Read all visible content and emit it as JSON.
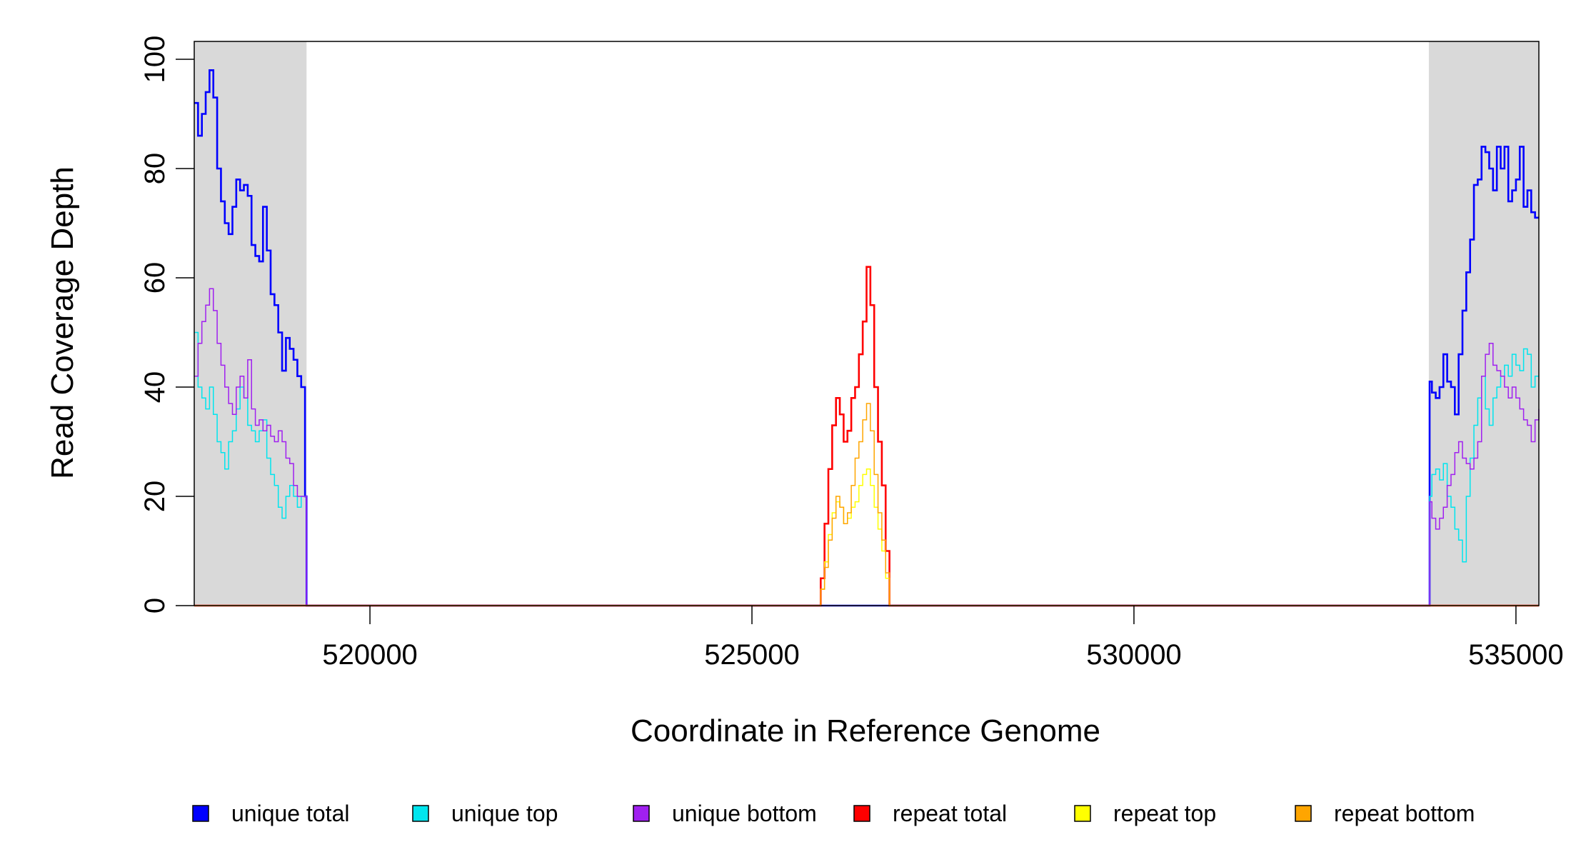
{
  "chart_data": {
    "type": "line",
    "title": "",
    "xlabel": "Coordinate in Reference Genome",
    "ylabel": "Read Coverage Depth",
    "xlim": [
      517700,
      535300
    ],
    "ylim": [
      0,
      103
    ],
    "x_ticks": [
      520000,
      525000,
      530000,
      535000
    ],
    "x_tick_labels": [
      "520000",
      "525000",
      "530000",
      "535000"
    ],
    "y_ticks": [
      0,
      20,
      40,
      60,
      80,
      100
    ],
    "y_tick_labels": [
      "0",
      "20",
      "40",
      "60",
      "80",
      "100"
    ],
    "grid": false,
    "legend_position": "bottom",
    "shaded_regions": [
      {
        "x": [
          517700,
          519170
        ],
        "color": "#d9d9d9"
      },
      {
        "x": [
          533860,
          535300
        ],
        "color": "#d9d9d9"
      }
    ],
    "series": [
      {
        "name": "unique total",
        "color": "#0000ff",
        "width": 2.6,
        "x": [
          517700,
          517750,
          517800,
          517850,
          517900,
          517950,
          518000,
          518050,
          518100,
          518150,
          518200,
          518250,
          518300,
          518350,
          518400,
          518450,
          518500,
          518550,
          518600,
          518650,
          518700,
          518750,
          518800,
          518850,
          518900,
          518950,
          519000,
          519050,
          519100,
          519150,
          519170,
          519190,
          525850,
          526000,
          526800,
          533850,
          533870,
          533900,
          533950,
          534000,
          534050,
          534100,
          534150,
          534200,
          534250,
          534300,
          534350,
          534400,
          534450,
          534500,
          534550,
          534600,
          534650,
          534700,
          534750,
          534800,
          534850,
          534900,
          534950,
          535000,
          535050,
          535100,
          535150,
          535200,
          535250,
          535300
        ],
        "y": [
          92,
          86,
          90,
          94,
          98,
          93,
          80,
          74,
          70,
          68,
          73,
          78,
          76,
          77,
          75,
          66,
          64,
          63,
          73,
          65,
          57,
          55,
          50,
          43,
          49,
          47,
          45,
          42,
          40,
          20,
          0,
          0,
          0,
          0,
          0,
          0,
          41,
          39,
          38,
          40,
          46,
          41,
          40,
          35,
          46,
          54,
          61,
          67,
          77,
          78,
          84,
          83,
          80,
          76,
          84,
          80,
          84,
          74,
          76,
          78,
          84,
          73,
          76,
          72,
          71,
          71
        ]
      },
      {
        "name": "unique top",
        "color": "#00e5ee",
        "width": 1.5,
        "x": [
          517700,
          517750,
          517800,
          517850,
          517900,
          517950,
          518000,
          518050,
          518100,
          518150,
          518200,
          518250,
          518300,
          518350,
          518400,
          518450,
          518500,
          518550,
          518600,
          518650,
          518700,
          518750,
          518800,
          518850,
          518900,
          518950,
          519000,
          519050,
          519100,
          519150,
          519170,
          519190,
          525850,
          526000,
          526800,
          533850,
          533870,
          533900,
          533950,
          534000,
          534050,
          534100,
          534150,
          534200,
          534250,
          534300,
          534350,
          534400,
          534450,
          534500,
          534550,
          534600,
          534650,
          534700,
          534750,
          534800,
          534850,
          534900,
          534950,
          535000,
          535050,
          535100,
          535150,
          535200,
          535250,
          535300
        ],
        "y": [
          50,
          40,
          38,
          36,
          40,
          35,
          30,
          28,
          25,
          30,
          32,
          36,
          40,
          38,
          33,
          32,
          30,
          32,
          34,
          27,
          24,
          22,
          18,
          16,
          20,
          22,
          20,
          18,
          20,
          20,
          0,
          0,
          0,
          0,
          0,
          0,
          20,
          24,
          25,
          23,
          26,
          20,
          18,
          14,
          12,
          8,
          20,
          27,
          33,
          38,
          42,
          36,
          33,
          38,
          40,
          42,
          44,
          42,
          46,
          44,
          43,
          47,
          46,
          40,
          42,
          42
        ]
      },
      {
        "name": "unique bottom",
        "color": "#a020f0",
        "width": 1.5,
        "x": [
          517700,
          517750,
          517800,
          517850,
          517900,
          517950,
          518000,
          518050,
          518100,
          518150,
          518200,
          518250,
          518300,
          518350,
          518400,
          518450,
          518500,
          518550,
          518600,
          518650,
          518700,
          518750,
          518800,
          518850,
          518900,
          518950,
          519000,
          519050,
          519100,
          519150,
          519170,
          519190,
          525850,
          526000,
          526800,
          533850,
          533870,
          533900,
          533950,
          534000,
          534050,
          534100,
          534150,
          534200,
          534250,
          534300,
          534350,
          534400,
          534450,
          534500,
          534550,
          534600,
          534650,
          534700,
          534750,
          534800,
          534850,
          534900,
          534950,
          535000,
          535050,
          535100,
          535150,
          535200,
          535250,
          535300
        ],
        "y": [
          42,
          48,
          52,
          55,
          58,
          54,
          48,
          44,
          40,
          37,
          35,
          40,
          42,
          38,
          45,
          36,
          33,
          34,
          32,
          33,
          31,
          30,
          32,
          30,
          27,
          26,
          22,
          20,
          20,
          20,
          0,
          0,
          0,
          0,
          0,
          0,
          19,
          16,
          14,
          16,
          18,
          22,
          24,
          28,
          30,
          27,
          26,
          25,
          27,
          30,
          42,
          46,
          48,
          44,
          43,
          42,
          40,
          38,
          40,
          38,
          36,
          34,
          33,
          30,
          34,
          36
        ]
      },
      {
        "name": "repeat total",
        "color": "#ff0000",
        "width": 2.6,
        "x": [
          517700,
          525850,
          525900,
          525950,
          526000,
          526050,
          526100,
          526150,
          526200,
          526250,
          526300,
          526350,
          526400,
          526450,
          526500,
          526550,
          526600,
          526650,
          526700,
          526750,
          526800,
          535300
        ],
        "y": [
          0,
          0,
          5,
          15,
          25,
          33,
          38,
          35,
          30,
          32,
          38,
          40,
          46,
          52,
          62,
          55,
          40,
          30,
          22,
          10,
          0,
          0
        ]
      },
      {
        "name": "repeat top",
        "color": "#ffff00",
        "width": 1.5,
        "x": [
          517700,
          525850,
          525900,
          525950,
          526000,
          526050,
          526100,
          526150,
          526200,
          526250,
          526300,
          526350,
          526400,
          526450,
          526500,
          526550,
          526600,
          526650,
          526700,
          526750,
          526800,
          535300
        ],
        "y": [
          0,
          0,
          3,
          8,
          13,
          17,
          19,
          18,
          15,
          16,
          18,
          19,
          22,
          24,
          25,
          22,
          18,
          14,
          10,
          5,
          0,
          0
        ]
      },
      {
        "name": "repeat bottom",
        "color": "#ffa500",
        "width": 1.5,
        "x": [
          517700,
          525850,
          525900,
          525950,
          526000,
          526050,
          526100,
          526150,
          526200,
          526250,
          526300,
          526350,
          526400,
          526450,
          526500,
          526550,
          526600,
          526650,
          526700,
          526750,
          526800,
          535300
        ],
        "y": [
          0,
          0,
          3,
          7,
          12,
          16,
          20,
          18,
          15,
          17,
          22,
          27,
          30,
          34,
          37,
          32,
          24,
          17,
          12,
          6,
          0,
          0
        ]
      }
    ]
  }
}
